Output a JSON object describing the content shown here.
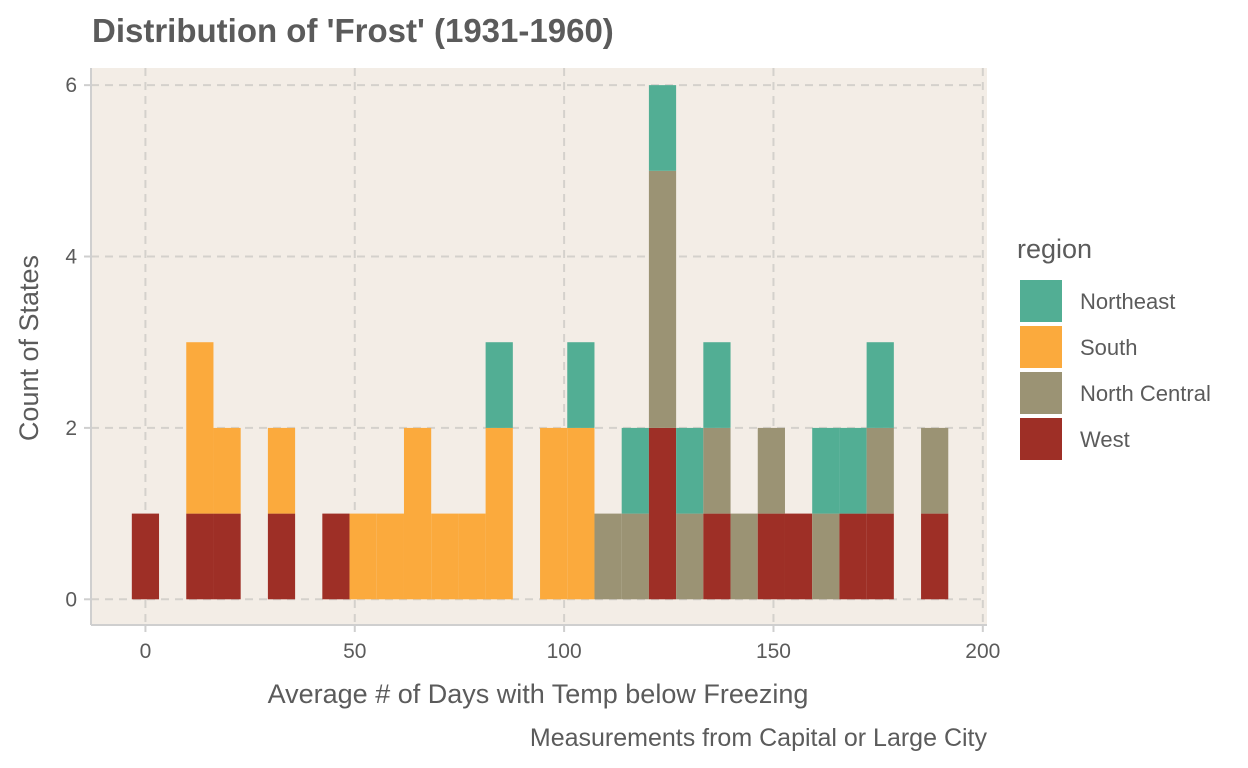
{
  "chart_data": {
    "type": "bar",
    "stacked": true,
    "title": "Distribution of 'Frost' (1931-1960)",
    "xlabel": "Average # of Days with Temp below Freezing",
    "ylabel": "Count of States",
    "caption": "Measurements from Capital or Large City",
    "xlim": [
      -13,
      201
    ],
    "ylim": [
      -0.3,
      6.2
    ],
    "bin_width": 6.5,
    "x_ticks": [
      0,
      50,
      100,
      150,
      200
    ],
    "y_ticks": [
      0,
      2,
      4,
      6
    ],
    "grid": true,
    "background": "#f3ede6",
    "legend": {
      "title": "region",
      "position": "right",
      "entries": [
        "Northeast",
        "South",
        "North Central",
        "West"
      ]
    },
    "colors": {
      "Northeast": "#52ae94",
      "South": "#fbaa3d",
      "North Central": "#9b9374",
      "West": "#9e2f26"
    },
    "stack_order": [
      "West",
      "North Central",
      "South",
      "Northeast"
    ],
    "x": [
      0,
      13,
      19.5,
      32.5,
      45.5,
      52,
      58.5,
      65,
      71.5,
      78,
      84.5,
      97.5,
      104,
      110.5,
      117,
      123.5,
      130,
      136.5,
      143,
      149.5,
      156,
      162.5,
      169,
      175.5,
      188.5
    ],
    "series": [
      {
        "name": "West",
        "values": [
          1,
          1,
          1,
          1,
          1,
          0,
          0,
          0,
          0,
          0,
          0,
          0,
          0,
          0,
          0,
          2,
          0,
          1,
          0,
          1,
          1,
          0,
          1,
          1,
          1
        ]
      },
      {
        "name": "North Central",
        "values": [
          0,
          0,
          0,
          0,
          0,
          0,
          0,
          0,
          0,
          0,
          0,
          0,
          0,
          1,
          1,
          3,
          1,
          1,
          1,
          1,
          0,
          1,
          0,
          1,
          1
        ]
      },
      {
        "name": "South",
        "values": [
          0,
          2,
          1,
          1,
          0,
          1,
          1,
          2,
          1,
          1,
          2,
          2,
          2,
          0,
          0,
          0,
          0,
          0,
          0,
          0,
          0,
          0,
          0,
          0,
          0
        ]
      },
      {
        "name": "Northeast",
        "values": [
          0,
          0,
          0,
          0,
          0,
          0,
          0,
          0,
          0,
          0,
          1,
          0,
          1,
          0,
          1,
          1,
          1,
          1,
          0,
          0,
          0,
          1,
          1,
          1,
          0
        ]
      }
    ]
  }
}
